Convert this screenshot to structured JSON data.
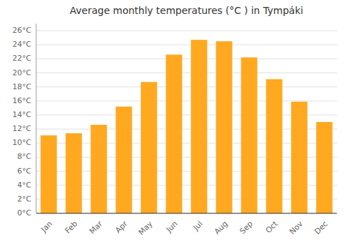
{
  "chart_data": {
    "type": "bar",
    "title": "Average monthly temperatures (°C ) in Tympáki",
    "categories": [
      "Jan",
      "Feb",
      "Mar",
      "Apr",
      "May",
      "Jun",
      "Jul",
      "Aug",
      "Sep",
      "Oct",
      "Nov",
      "Dec"
    ],
    "values": [
      11.1,
      11.4,
      12.6,
      15.2,
      18.7,
      22.6,
      24.7,
      24.5,
      22.2,
      19.1,
      15.9,
      13.0
    ],
    "color": "#FFA820",
    "ylim": [
      0,
      27
    ],
    "yticks": [
      {
        "value": 0,
        "label": "0°C"
      },
      {
        "value": 2,
        "label": "2°C"
      },
      {
        "value": 4,
        "label": "4°C"
      },
      {
        "value": 6,
        "label": "6°C"
      },
      {
        "value": 8,
        "label": "8°C"
      },
      {
        "value": 10,
        "label": "10°C"
      },
      {
        "value": 12,
        "label": "12°C"
      },
      {
        "value": 14,
        "label": "14°C"
      },
      {
        "value": 16,
        "label": "16°C"
      },
      {
        "value": 18,
        "label": "18°C"
      },
      {
        "value": 20,
        "label": "20°C"
      },
      {
        "value": 22,
        "label": "22°C"
      },
      {
        "value": 24,
        "label": "24°C"
      },
      {
        "value": 26,
        "label": "26°C"
      }
    ],
    "grid": true
  }
}
